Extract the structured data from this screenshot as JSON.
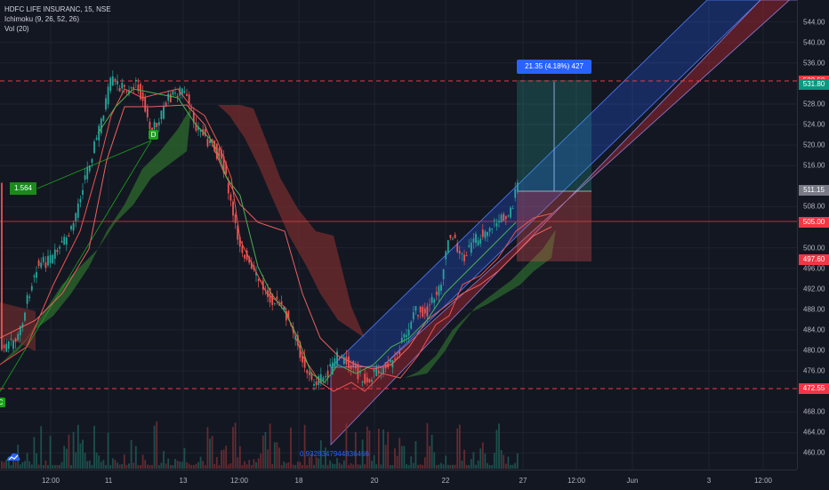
{
  "legend": {
    "symbol": "HDFC LIFE INSURANC, 15, NSE",
    "ichimoku": "Ichimoku (9, 26, 52, 26)",
    "volume": "Vol (20)"
  },
  "price_axis": {
    "ticks": [
      "544.00",
      "540.00",
      "536.00",
      "528.00",
      "524.00",
      "520.00",
      "516.00",
      "508.00",
      "500.00",
      "496.00",
      "492.00",
      "488.00",
      "484.00",
      "480.00",
      "476.00",
      "468.00",
      "464.00",
      "460.00"
    ],
    "tags": [
      {
        "label": "532.50",
        "color": "#f23645"
      },
      {
        "label": "531.80",
        "color": "#089981"
      },
      {
        "label": "511.15",
        "color": "#787b86"
      },
      {
        "label": "505.00",
        "color": "#f23645"
      },
      {
        "label": "497.60",
        "color": "#f23645"
      },
      {
        "label": "472.55",
        "color": "#f23645"
      }
    ]
  },
  "time_axis": {
    "labels": [
      "12:00",
      "11",
      "13",
      "12:00",
      "18",
      "20",
      "22",
      "27",
      "12:00",
      "Jun",
      "3",
      "12:00"
    ]
  },
  "annotations": {
    "position_box": "21.35 (4.18%) 427",
    "fib_label": "1.564",
    "marker_d": "D",
    "marker_c": "C",
    "volume_value": "0.9328347944836466"
  },
  "colors": {
    "background": "#131722",
    "up": "#26a69a",
    "down": "#ef5350",
    "cloud_bull": "#2e6b2e",
    "cloud_bear": "#7a2e2e",
    "channel_blue": "#2962ff",
    "channel_red": "#b22833"
  }
}
